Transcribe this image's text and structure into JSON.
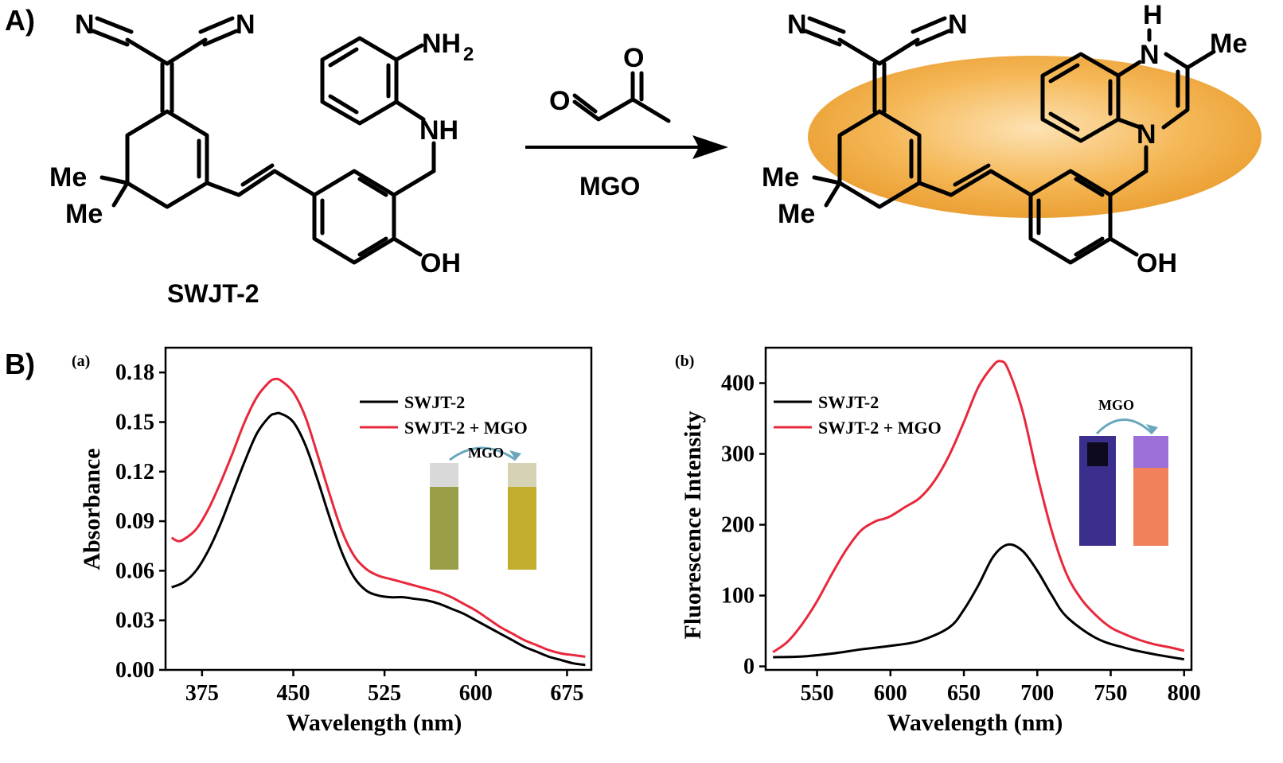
{
  "panels": {
    "a_label": "A)",
    "b_label": "B)"
  },
  "reaction": {
    "reactant_name": "SWJT-2",
    "reagent_label": "MGO",
    "atoms": {
      "n": "N",
      "o": "O",
      "me": "Me",
      "nh2": "NH",
      "nh2_sub": "2",
      "nh": "NH",
      "oh": "OH",
      "h": "H"
    },
    "highlight_color": "#f2a93b"
  },
  "chart_data": [
    {
      "type": "line",
      "panel": "(a)",
      "xlabel": "Wavelength (nm)",
      "ylabel": "Absorbance",
      "xlim": [
        345,
        695
      ],
      "ylim": [
        0,
        0.195
      ],
      "xticks": [
        375,
        450,
        525,
        600,
        675
      ],
      "yticks": [
        0.0,
        0.03,
        0.06,
        0.09,
        0.12,
        0.15,
        0.18
      ],
      "ytick_labels": [
        "0.00",
        "0.03",
        "0.06",
        "0.09",
        "0.12",
        "0.15",
        "0.18"
      ],
      "legend_position": "top-right",
      "inset_label": "MGO",
      "series": [
        {
          "name": "SWJT-2",
          "color": "#000000",
          "x": [
            350,
            360,
            370,
            380,
            390,
            400,
            410,
            420,
            430,
            435,
            440,
            450,
            460,
            470,
            480,
            490,
            500,
            510,
            520,
            530,
            540,
            550,
            560,
            570,
            580,
            590,
            600,
            610,
            620,
            630,
            640,
            650,
            660,
            670,
            680,
            690
          ],
          "y": [
            0.05,
            0.053,
            0.06,
            0.072,
            0.088,
            0.107,
            0.126,
            0.143,
            0.153,
            0.155,
            0.155,
            0.15,
            0.136,
            0.115,
            0.092,
            0.071,
            0.056,
            0.048,
            0.045,
            0.044,
            0.044,
            0.043,
            0.042,
            0.04,
            0.037,
            0.034,
            0.03,
            0.026,
            0.022,
            0.018,
            0.014,
            0.011,
            0.008,
            0.006,
            0.004,
            0.003
          ]
        },
        {
          "name": "SWJT-2 + MGO",
          "color": "#e8283c",
          "x": [
            350,
            355,
            360,
            370,
            380,
            390,
            400,
            410,
            420,
            430,
            435,
            440,
            450,
            460,
            470,
            480,
            490,
            500,
            510,
            520,
            530,
            540,
            550,
            560,
            570,
            580,
            590,
            600,
            610,
            620,
            630,
            640,
            650,
            660,
            670,
            680,
            690
          ],
          "y": [
            0.08,
            0.078,
            0.079,
            0.085,
            0.097,
            0.113,
            0.131,
            0.15,
            0.165,
            0.174,
            0.176,
            0.175,
            0.168,
            0.153,
            0.13,
            0.106,
            0.084,
            0.069,
            0.061,
            0.057,
            0.055,
            0.053,
            0.051,
            0.049,
            0.047,
            0.044,
            0.04,
            0.036,
            0.031,
            0.026,
            0.022,
            0.018,
            0.015,
            0.012,
            0.01,
            0.009,
            0.008
          ]
        }
      ]
    },
    {
      "type": "line",
      "panel": "(b)",
      "xlabel": "Wavelength (nm)",
      "ylabel": "Fluorescence Intensity",
      "xlim": [
        515,
        805
      ],
      "ylim": [
        -5,
        450
      ],
      "xticks": [
        550,
        600,
        650,
        700,
        750,
        800
      ],
      "yticks": [
        0,
        100,
        200,
        300,
        400
      ],
      "ytick_labels": [
        "0",
        "100",
        "200",
        "300",
        "400"
      ],
      "legend_position": "top-left",
      "inset_label": "MGO",
      "series": [
        {
          "name": "SWJT-2",
          "color": "#000000",
          "x": [
            520,
            540,
            560,
            580,
            600,
            620,
            640,
            650,
            660,
            670,
            680,
            690,
            700,
            710,
            720,
            740,
            760,
            780,
            800
          ],
          "y": [
            13,
            14,
            18,
            24,
            29,
            36,
            55,
            80,
            115,
            155,
            172,
            163,
            135,
            100,
            70,
            40,
            26,
            17,
            10
          ]
        },
        {
          "name": "SWJT-2 + MGO",
          "color": "#e8283c",
          "x": [
            520,
            530,
            540,
            550,
            560,
            570,
            580,
            590,
            595,
            600,
            610,
            620,
            630,
            640,
            650,
            660,
            670,
            675,
            680,
            690,
            700,
            710,
            720,
            730,
            740,
            750,
            760,
            770,
            780,
            790,
            800
          ],
          "y": [
            20,
            35,
            60,
            92,
            130,
            165,
            192,
            205,
            208,
            212,
            225,
            238,
            262,
            298,
            345,
            395,
            425,
            431,
            420,
            360,
            270,
            190,
            130,
            95,
            72,
            55,
            45,
            37,
            31,
            27,
            22
          ]
        }
      ]
    }
  ]
}
